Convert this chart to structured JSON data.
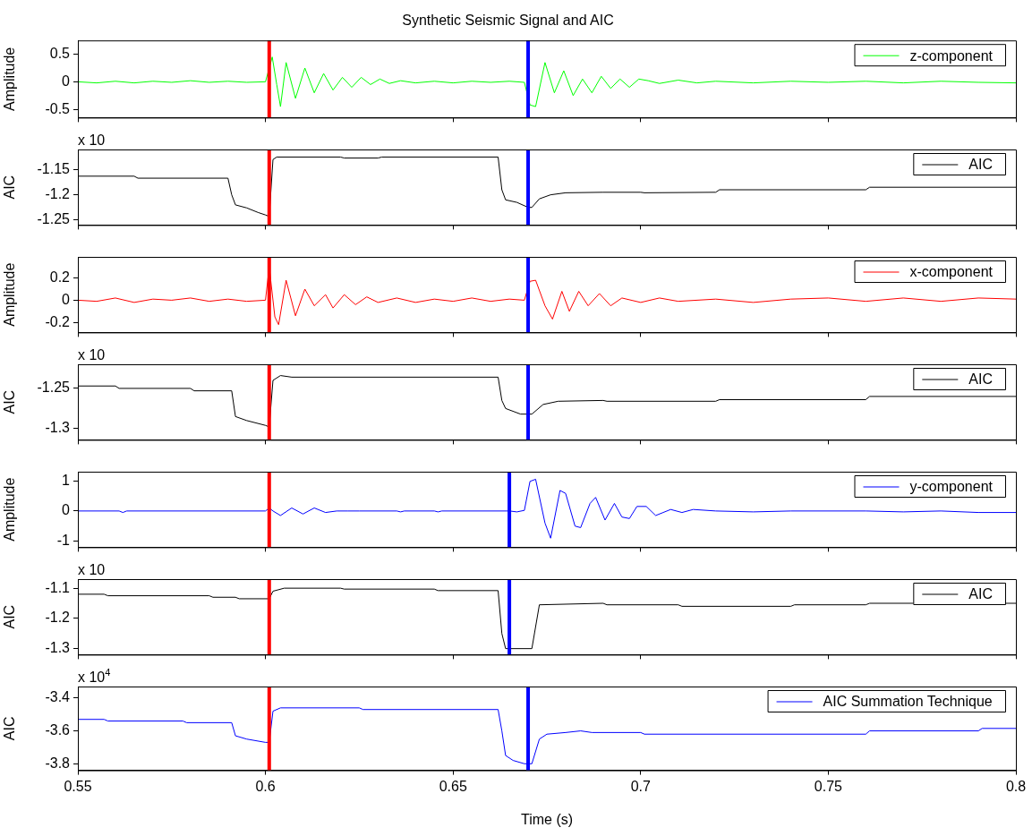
{
  "chart_data": [
    {
      "type": "line",
      "title": "Synthetic Seismic Signal and AIC",
      "ylabel": "Amplitude",
      "xlim": [
        0.55,
        0.8
      ],
      "xticks": [
        0.55,
        0.6,
        0.65,
        0.7,
        0.75,
        0.8
      ],
      "ylim": [
        -0.65,
        0.75
      ],
      "yticks": [
        -0.5,
        0,
        0.5
      ],
      "tick_labels": "y",
      "legend": "top right",
      "grid": false,
      "ref_lines": [
        {
          "axis": "x",
          "value": 0.601,
          "color": "#ff0000"
        },
        {
          "axis": "x",
          "value": 0.67,
          "color": "#0000ff"
        }
      ],
      "series": [
        {
          "name": "z-component",
          "color": "#00ff00",
          "x": [
            0.55,
            0.555,
            0.56,
            0.565,
            0.57,
            0.575,
            0.58,
            0.585,
            0.59,
            0.595,
            0.6,
            0.6018,
            0.603,
            0.604,
            0.6055,
            0.608,
            0.6105,
            0.613,
            0.6155,
            0.618,
            0.6205,
            0.623,
            0.6255,
            0.628,
            0.6305,
            0.633,
            0.636,
            0.64,
            0.645,
            0.65,
            0.655,
            0.66,
            0.665,
            0.669,
            0.6705,
            0.672,
            0.6745,
            0.677,
            0.6795,
            0.682,
            0.6845,
            0.687,
            0.6895,
            0.692,
            0.6945,
            0.697,
            0.6995,
            0.702,
            0.705,
            0.71,
            0.715,
            0.72,
            0.73,
            0.74,
            0.75,
            0.76,
            0.77,
            0.78,
            0.79,
            0.8
          ],
          "values": [
            0,
            -0.02,
            0.01,
            -0.02,
            0.01,
            -0.01,
            0.02,
            -0.01,
            0.01,
            -0.01,
            0,
            0.45,
            -0.05,
            -0.45,
            0.35,
            -0.3,
            0.25,
            -0.2,
            0.15,
            -0.15,
            0.08,
            -0.1,
            0.08,
            -0.05,
            0.05,
            -0.03,
            0.02,
            -0.02,
            0.01,
            -0.02,
            0.01,
            -0.01,
            0.01,
            -0.01,
            -0.42,
            -0.45,
            0.35,
            -0.2,
            0.2,
            -0.25,
            0.05,
            -0.2,
            0.1,
            -0.12,
            0.05,
            -0.1,
            0.05,
            0.02,
            -0.03,
            0.03,
            -0.02,
            0.01,
            -0.02,
            0.01,
            -0.01,
            0.01,
            -0.02,
            0.01,
            -0.01,
            -0.02
          ]
        }
      ]
    },
    {
      "type": "line",
      "ylabel": "AIC",
      "annotations": [
        "x 10"
      ],
      "xlim": [
        0.55,
        0.8
      ],
      "xticks": [
        0.55,
        0.6,
        0.65,
        0.7,
        0.75,
        0.8
      ],
      "ylim": [
        -1.26,
        -1.11
      ],
      "yticks": [
        -1.25,
        -1.2,
        -1.15
      ],
      "tick_labels": "y",
      "legend": "top right",
      "grid": false,
      "ref_lines": [
        {
          "axis": "x",
          "value": 0.601,
          "color": "#ff0000"
        },
        {
          "axis": "x",
          "value": 0.67,
          "color": "#0000ff"
        }
      ],
      "series": [
        {
          "name": "AIC",
          "color": "#000000",
          "x": [
            0.55,
            0.565,
            0.566,
            0.59,
            0.591,
            0.592,
            0.595,
            0.598,
            0.6,
            0.601,
            0.602,
            0.603,
            0.62,
            0.621,
            0.63,
            0.631,
            0.662,
            0.663,
            0.664,
            0.667,
            0.67,
            0.671,
            0.673,
            0.676,
            0.68,
            0.69,
            0.7,
            0.701,
            0.72,
            0.721,
            0.76,
            0.761,
            0.8
          ],
          "values": [
            -1.163,
            -1.163,
            -1.167,
            -1.167,
            -1.2,
            -1.22,
            -1.226,
            -1.235,
            -1.24,
            -1.243,
            -1.13,
            -1.125,
            -1.125,
            -1.127,
            -1.127,
            -1.125,
            -1.125,
            -1.19,
            -1.21,
            -1.215,
            -1.225,
            -1.225,
            -1.208,
            -1.2,
            -1.196,
            -1.195,
            -1.195,
            -1.196,
            -1.195,
            -1.19,
            -1.19,
            -1.185,
            -1.185
          ]
        }
      ]
    },
    {
      "type": "line",
      "ylabel": "Amplitude",
      "xlim": [
        0.55,
        0.8
      ],
      "xticks": [
        0.55,
        0.6,
        0.65,
        0.7,
        0.75,
        0.8
      ],
      "ylim": [
        -0.29,
        0.39
      ],
      "yticks": [
        -0.2,
        0,
        0.2
      ],
      "tick_labels": "y",
      "legend": "top right",
      "grid": false,
      "ref_lines": [
        {
          "axis": "x",
          "value": 0.601,
          "color": "#ff0000"
        },
        {
          "axis": "x",
          "value": 0.67,
          "color": "#0000ff"
        }
      ],
      "series": [
        {
          "name": "x-component",
          "color": "#ff0000",
          "x": [
            0.55,
            0.555,
            0.56,
            0.565,
            0.57,
            0.575,
            0.58,
            0.585,
            0.59,
            0.595,
            0.6,
            0.601,
            0.6025,
            0.6035,
            0.6055,
            0.608,
            0.6105,
            0.613,
            0.616,
            0.618,
            0.621,
            0.624,
            0.627,
            0.63,
            0.635,
            0.64,
            0.645,
            0.65,
            0.655,
            0.66,
            0.665,
            0.669,
            0.6705,
            0.672,
            0.6745,
            0.6765,
            0.679,
            0.681,
            0.6835,
            0.686,
            0.689,
            0.692,
            0.695,
            0.7,
            0.705,
            0.71,
            0.72,
            0.73,
            0.74,
            0.75,
            0.76,
            0.77,
            0.78,
            0.79,
            0.8
          ],
          "values": [
            0,
            -0.01,
            0.02,
            -0.02,
            0.01,
            0,
            0.02,
            -0.01,
            0.01,
            -0.01,
            0,
            0.3,
            -0.15,
            -0.22,
            0.18,
            -0.14,
            0.1,
            -0.05,
            0.05,
            -0.07,
            0.05,
            -0.04,
            0.03,
            -0.02,
            0.02,
            -0.02,
            0.01,
            -0.01,
            0.02,
            -0.01,
            0.01,
            0,
            0.17,
            0.18,
            -0.05,
            -0.17,
            0.08,
            -0.1,
            0.08,
            -0.05,
            0.06,
            -0.05,
            0.02,
            -0.02,
            0.02,
            -0.01,
            0.01,
            -0.02,
            0.01,
            0.02,
            -0.01,
            0.02,
            -0.01,
            0.02,
            0.01
          ]
        }
      ]
    },
    {
      "type": "line",
      "ylabel": "AIC",
      "annotations": [
        "x 10"
      ],
      "xlim": [
        0.55,
        0.8
      ],
      "xticks": [
        0.55,
        0.6,
        0.65,
        0.7,
        0.75,
        0.8
      ],
      "ylim": [
        -1.314,
        -1.22
      ],
      "yticks": [
        -1.3,
        -1.25
      ],
      "tick_labels": "y",
      "legend": "top right",
      "grid": false,
      "ref_lines": [
        {
          "axis": "x",
          "value": 0.601,
          "color": "#ff0000"
        },
        {
          "axis": "x",
          "value": 0.67,
          "color": "#0000ff"
        }
      ],
      "series": [
        {
          "name": "AIC",
          "color": "#000000",
          "x": [
            0.55,
            0.56,
            0.561,
            0.58,
            0.581,
            0.591,
            0.592,
            0.595,
            0.6,
            0.601,
            0.602,
            0.604,
            0.607,
            0.662,
            0.663,
            0.664,
            0.668,
            0.671,
            0.674,
            0.678,
            0.69,
            0.691,
            0.72,
            0.721,
            0.76,
            0.761,
            0.8
          ],
          "values": [
            -1.247,
            -1.247,
            -1.25,
            -1.25,
            -1.253,
            -1.253,
            -1.285,
            -1.29,
            -1.296,
            -1.298,
            -1.24,
            -1.234,
            -1.236,
            -1.236,
            -1.265,
            -1.275,
            -1.282,
            -1.282,
            -1.27,
            -1.266,
            -1.265,
            -1.266,
            -1.266,
            -1.264,
            -1.264,
            -1.26,
            -1.26
          ]
        }
      ]
    },
    {
      "type": "line",
      "ylabel": "Amplitude",
      "xlim": [
        0.55,
        0.8
      ],
      "xticks": [
        0.55,
        0.6,
        0.65,
        0.7,
        0.75,
        0.8
      ],
      "ylim": [
        -1.2,
        1.3
      ],
      "yticks": [
        -1,
        0,
        1
      ],
      "tick_labels": "y",
      "legend": "top right",
      "grid": false,
      "ref_lines": [
        {
          "axis": "x",
          "value": 0.601,
          "color": "#ff0000"
        },
        {
          "axis": "x",
          "value": 0.665,
          "color": "#0000ff"
        }
      ],
      "series": [
        {
          "name": "y-component",
          "color": "#0000ff",
          "x": [
            0.55,
            0.561,
            0.562,
            0.563,
            0.6,
            0.601,
            0.602,
            0.604,
            0.607,
            0.61,
            0.613,
            0.616,
            0.619,
            0.622,
            0.625,
            0.635,
            0.636,
            0.637,
            0.645,
            0.646,
            0.647,
            0.665,
            0.667,
            0.669,
            0.6705,
            0.672,
            0.6745,
            0.676,
            0.6785,
            0.68,
            0.6825,
            0.684,
            0.6865,
            0.688,
            0.6905,
            0.693,
            0.695,
            0.697,
            0.699,
            0.7015,
            0.704,
            0.706,
            0.708,
            0.711,
            0.714,
            0.72,
            0.73,
            0.74,
            0.76,
            0.77,
            0.78,
            0.79,
            0.8
          ],
          "values": [
            0,
            0,
            -0.05,
            0,
            0,
            0.1,
            0,
            -0.15,
            0.1,
            -0.1,
            0.1,
            -0.05,
            0,
            0,
            0,
            0,
            -0.03,
            0,
            0,
            -0.03,
            0,
            0,
            -0.03,
            0.02,
            0.98,
            1.05,
            -0.4,
            -0.9,
            0.68,
            0.58,
            -0.5,
            -0.55,
            0.25,
            0.45,
            -0.3,
            0.25,
            -0.2,
            -0.25,
            0.15,
            0.15,
            -0.15,
            -0.05,
            0.05,
            -0.05,
            0.05,
            0,
            -0.03,
            0,
            0,
            -0.03,
            0,
            -0.05,
            -0.05
          ]
        }
      ]
    },
    {
      "type": "line",
      "ylabel": "AIC",
      "annotations": [
        "x 10"
      ],
      "xlim": [
        0.55,
        0.8
      ],
      "xticks": [
        0.55,
        0.6,
        0.65,
        0.7,
        0.75,
        0.8
      ],
      "ylim": [
        -1.32,
        -1.07
      ],
      "yticks": [
        -1.3,
        -1.2,
        -1.1
      ],
      "tick_labels": "y",
      "legend": "top right",
      "grid": false,
      "ref_lines": [
        {
          "axis": "x",
          "value": 0.601,
          "color": "#ff0000"
        },
        {
          "axis": "x",
          "value": 0.665,
          "color": "#0000ff"
        }
      ],
      "series": [
        {
          "name": "AIC",
          "color": "#000000",
          "x": [
            0.55,
            0.557,
            0.558,
            0.585,
            0.586,
            0.592,
            0.593,
            0.601,
            0.602,
            0.605,
            0.62,
            0.621,
            0.645,
            0.646,
            0.662,
            0.663,
            0.664,
            0.671,
            0.673,
            0.69,
            0.691,
            0.71,
            0.711,
            0.74,
            0.741,
            0.76,
            0.761,
            0.8
          ],
          "values": [
            -1.12,
            -1.12,
            -1.125,
            -1.125,
            -1.13,
            -1.13,
            -1.135,
            -1.135,
            -1.11,
            -1.1,
            -1.1,
            -1.103,
            -1.103,
            -1.108,
            -1.108,
            -1.25,
            -1.3,
            -1.3,
            -1.155,
            -1.15,
            -1.155,
            -1.155,
            -1.16,
            -1.16,
            -1.155,
            -1.155,
            -1.15,
            -1.15
          ]
        }
      ]
    },
    {
      "type": "line",
      "ylabel": "AIC",
      "xlabel": "Time (s)",
      "annotations": [
        "x 10$^{4}$"
      ],
      "xlim": [
        0.55,
        0.8
      ],
      "xticks": [
        0.55,
        0.6,
        0.65,
        0.7,
        0.75,
        0.8
      ],
      "ylim": [
        -3.84,
        -3.33
      ],
      "yticks": [
        -3.8,
        -3.6,
        -3.4
      ],
      "legend": "top right",
      "grid": false,
      "ref_lines": [
        {
          "axis": "x",
          "value": 0.601,
          "color": "#ff0000"
        },
        {
          "axis": "x",
          "value": 0.67,
          "color": "#0000ff"
        }
      ],
      "series": [
        {
          "name": "AIC Summation Technique",
          "color": "#0000ff",
          "x": [
            0.55,
            0.557,
            0.558,
            0.578,
            0.579,
            0.591,
            0.592,
            0.595,
            0.6,
            0.601,
            0.602,
            0.604,
            0.625,
            0.626,
            0.662,
            0.663,
            0.664,
            0.666,
            0.669,
            0.671,
            0.673,
            0.675,
            0.68,
            0.684,
            0.687,
            0.7,
            0.701,
            0.76,
            0.761,
            0.79,
            0.791,
            0.8
          ],
          "values": [
            -3.53,
            -3.53,
            -3.54,
            -3.54,
            -3.55,
            -3.55,
            -3.63,
            -3.65,
            -3.67,
            -3.67,
            -3.48,
            -3.46,
            -3.46,
            -3.47,
            -3.47,
            -3.6,
            -3.75,
            -3.78,
            -3.8,
            -3.8,
            -3.65,
            -3.62,
            -3.61,
            -3.6,
            -3.61,
            -3.61,
            -3.62,
            -3.62,
            -3.6,
            -3.6,
            -3.585,
            -3.585
          ]
        }
      ]
    }
  ]
}
